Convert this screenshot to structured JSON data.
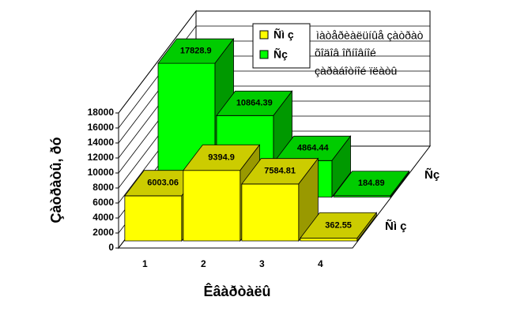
{
  "chart_data": {
    "type": "bar3d",
    "categories": [
      "1",
      "2",
      "3",
      "4"
    ],
    "series": [
      {
        "name": "Ñì ç",
        "color": "#ffff00",
        "values": [
          6003.06,
          9394.9,
          7584.81,
          362.55
        ]
      },
      {
        "name": "Ñç",
        "color": "#00ff00",
        "values": [
          17828.9,
          10864.39,
          4864.44,
          184.89
        ]
      }
    ],
    "ylim": [
      0,
      18000
    ],
    "yticks": [
      0,
      2000,
      4000,
      6000,
      8000,
      10000,
      12000,
      14000,
      16000,
      18000
    ],
    "grid": true,
    "y_label": "Çàòðàòû, ðó",
    "x_label": "Êâàðòàëû",
    "annotations": [
      "ìàòåðèàëüíûå çàòðàò",
      "õîäîâ îñíîâíîé",
      "çàðàáîòíîé ïëàòû"
    ]
  }
}
